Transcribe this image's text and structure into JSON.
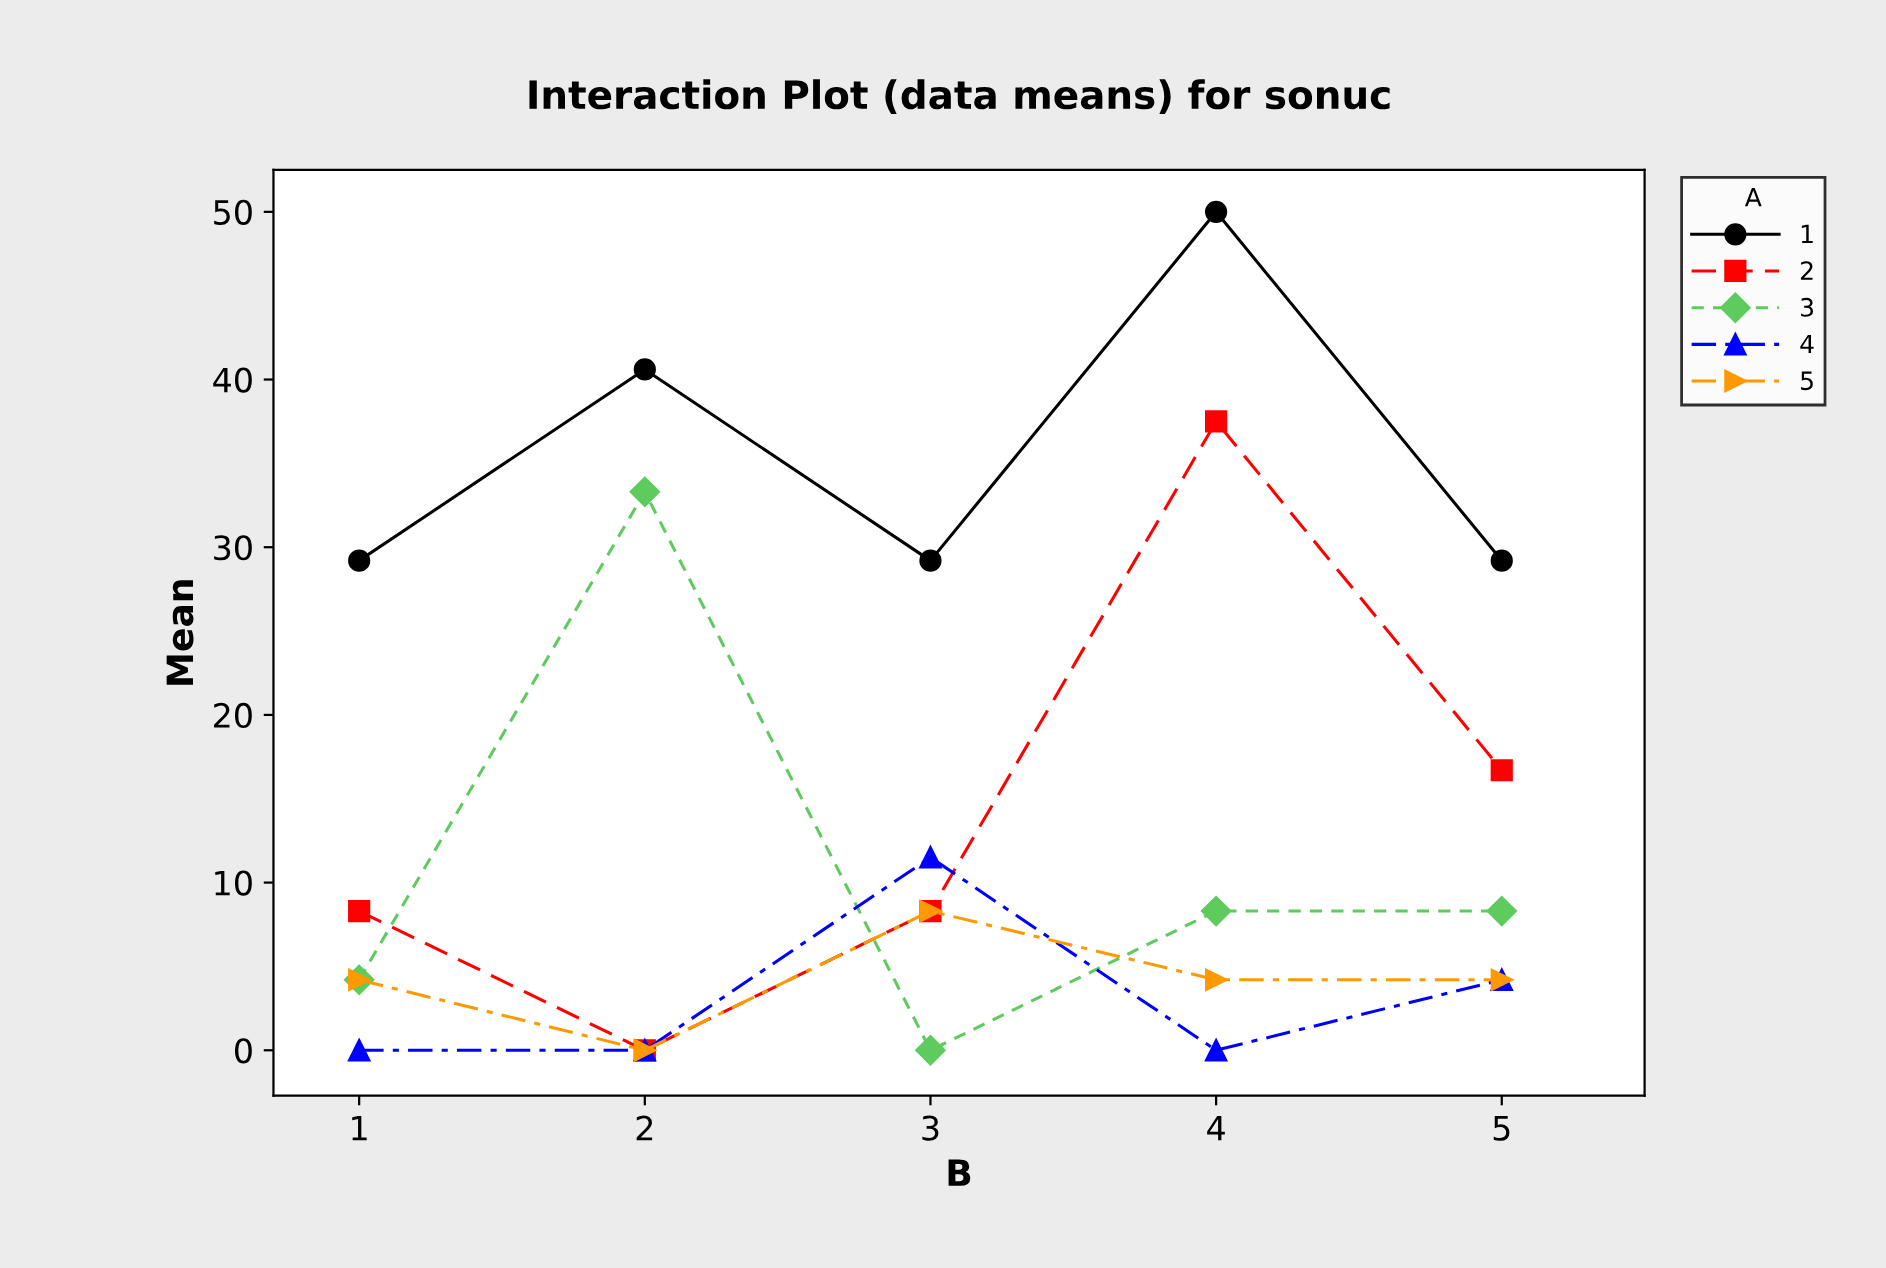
{
  "chart_data": {
    "type": "line",
    "title": "Interaction Plot (data means) for sonuc",
    "xlabel": "B",
    "ylabel": "Mean",
    "legend_title": "A",
    "x": [
      1,
      2,
      3,
      4,
      5
    ],
    "xlim": [
      0.7,
      5.5
    ],
    "xticks": [
      1,
      2,
      3,
      4,
      5
    ],
    "ylim": [
      -2.7,
      52.5
    ],
    "yticks": [
      0,
      10,
      20,
      30,
      40,
      50
    ],
    "grid": false,
    "legend": "top right",
    "series": [
      {
        "name": "1",
        "color": "#000000",
        "marker": "circle",
        "line_style": "solid",
        "values": [
          29.2,
          40.6,
          29.2,
          50.0,
          29.2
        ]
      },
      {
        "name": "2",
        "color": "#ff0000",
        "marker": "square",
        "line_style": "dashed",
        "values": [
          8.3,
          0,
          8.3,
          37.5,
          16.7
        ]
      },
      {
        "name": "3",
        "color": "#5ecb5e",
        "marker": "diamond",
        "line_style": "dotted",
        "values": [
          4.2,
          33.3,
          0,
          8.3,
          8.3
        ]
      },
      {
        "name": "4",
        "color": "#0000ff",
        "marker": "triangle",
        "line_style": "dashdot",
        "values": [
          0,
          0,
          11.5,
          0,
          4.2
        ]
      },
      {
        "name": "5",
        "color": "#ff9900",
        "marker": "triangle-right",
        "line_style": "dashdot",
        "values": [
          4.2,
          0,
          8.3,
          4.2,
          4.2
        ]
      }
    ]
  }
}
